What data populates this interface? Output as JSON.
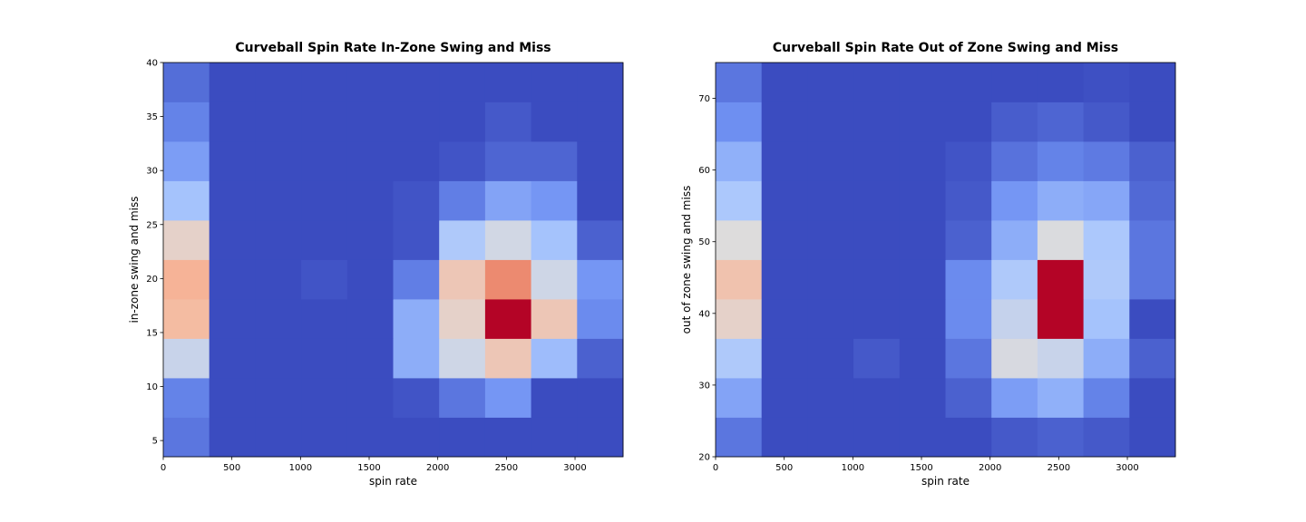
{
  "chart_data": [
    {
      "type": "heatmap",
      "title": "Curveball Spin Rate In-Zone Swing and Miss",
      "xlabel": "spin rate",
      "ylabel": "in-zone swing and miss",
      "xlim": [
        0,
        3350
      ],
      "ylim": [
        3.5,
        40
      ],
      "x_bin_edges": [
        0,
        335,
        670,
        1005,
        1340,
        1675,
        2010,
        2345,
        2680,
        3015,
        3350
      ],
      "y_bin_edges": [
        3.5,
        7.15,
        10.8,
        14.45,
        18.1,
        21.75,
        25.4,
        29.05,
        32.7,
        36.35,
        40
      ],
      "xticks": [
        0,
        500,
        1000,
        1500,
        2000,
        2500,
        3000
      ],
      "yticks": [
        5,
        10,
        15,
        20,
        25,
        30,
        35,
        40
      ],
      "value_range": [
        0,
        10
      ],
      "colormap": [
        "#3b4cc0",
        "#7092f3",
        "#aac7fd",
        "#dddcdc",
        "#f7b89c",
        "#e7745b",
        "#b40426"
      ],
      "counts": [
        [
          1,
          0,
          0,
          0,
          0,
          0,
          0,
          0,
          0,
          0
        ],
        [
          1.3,
          0,
          0,
          0,
          0,
          0.2,
          1,
          1.8,
          0,
          0
        ],
        [
          4.3,
          0,
          0,
          0,
          0,
          2.5,
          4.5,
          6,
          3,
          0.5
        ],
        [
          6.5,
          0,
          0,
          0,
          0,
          2.5,
          5.5,
          10,
          6,
          1.5
        ],
        [
          6.8,
          0,
          0,
          0.2,
          0,
          1.2,
          6,
          7.8,
          4.5,
          1.8
        ],
        [
          5.5,
          0,
          0,
          0,
          0,
          0.2,
          3.5,
          4.6,
          3.2,
          0.5
        ],
        [
          3.2,
          0,
          0,
          0,
          0,
          0.2,
          1.2,
          2.2,
          1.8,
          0
        ],
        [
          2,
          0,
          0,
          0,
          0,
          0,
          0.2,
          0.6,
          0.6,
          0
        ],
        [
          1.3,
          0,
          0,
          0,
          0,
          0,
          0,
          0.3,
          0,
          0
        ],
        [
          0.8,
          0,
          0,
          0,
          0,
          0,
          0,
          0,
          0,
          0
        ]
      ]
    },
    {
      "type": "heatmap",
      "title": "Curveball Spin Rate Out of Zone Swing and Miss",
      "xlabel": "spin rate",
      "ylabel": "out of zone swing and miss",
      "xlim": [
        0,
        3350
      ],
      "ylim": [
        20,
        75
      ],
      "x_bin_edges": [
        0,
        335,
        670,
        1005,
        1340,
        1675,
        2010,
        2345,
        2680,
        3015,
        3350
      ],
      "y_bin_edges": [
        20,
        25.5,
        31,
        36.5,
        42,
        47.5,
        53,
        58.5,
        64,
        69.5,
        75
      ],
      "xticks": [
        0,
        500,
        1000,
        1500,
        2000,
        2500,
        3000
      ],
      "yticks": [
        20,
        30,
        40,
        50,
        60,
        70
      ],
      "value_range": [
        0,
        10
      ],
      "colormap": [
        "#3b4cc0",
        "#7092f3",
        "#aac7fd",
        "#dddcdc",
        "#f7b89c",
        "#e7745b",
        "#b40426"
      ],
      "counts": [
        [
          1,
          0,
          0,
          0,
          0,
          0,
          0.3,
          0.5,
          0.3,
          0
        ],
        [
          2.2,
          0,
          0,
          0,
          0,
          0.5,
          2,
          2.6,
          1.3,
          0
        ],
        [
          3.5,
          0,
          0,
          0.3,
          0,
          1,
          4.8,
          4.3,
          2.5,
          0.5
        ],
        [
          5.5,
          0,
          0,
          0,
          0,
          1.5,
          4.2,
          10,
          3.2,
          0
        ],
        [
          6.2,
          0,
          0,
          0,
          0,
          1.5,
          3.5,
          10,
          3.5,
          1
        ],
        [
          5,
          0,
          0,
          0,
          0,
          0.5,
          2.5,
          4.9,
          3.4,
          1
        ],
        [
          3.4,
          0,
          0,
          0,
          0,
          0.3,
          1.8,
          2.5,
          2.3,
          0.7
        ],
        [
          2.6,
          0,
          0,
          0,
          0,
          0.2,
          0.9,
          1.3,
          1.1,
          0.5
        ],
        [
          1.6,
          0,
          0,
          0,
          0,
          0,
          0.4,
          0.6,
          0.3,
          0
        ],
        [
          1,
          0,
          0,
          0,
          0,
          0,
          0,
          0,
          0.1,
          0
        ]
      ]
    }
  ]
}
